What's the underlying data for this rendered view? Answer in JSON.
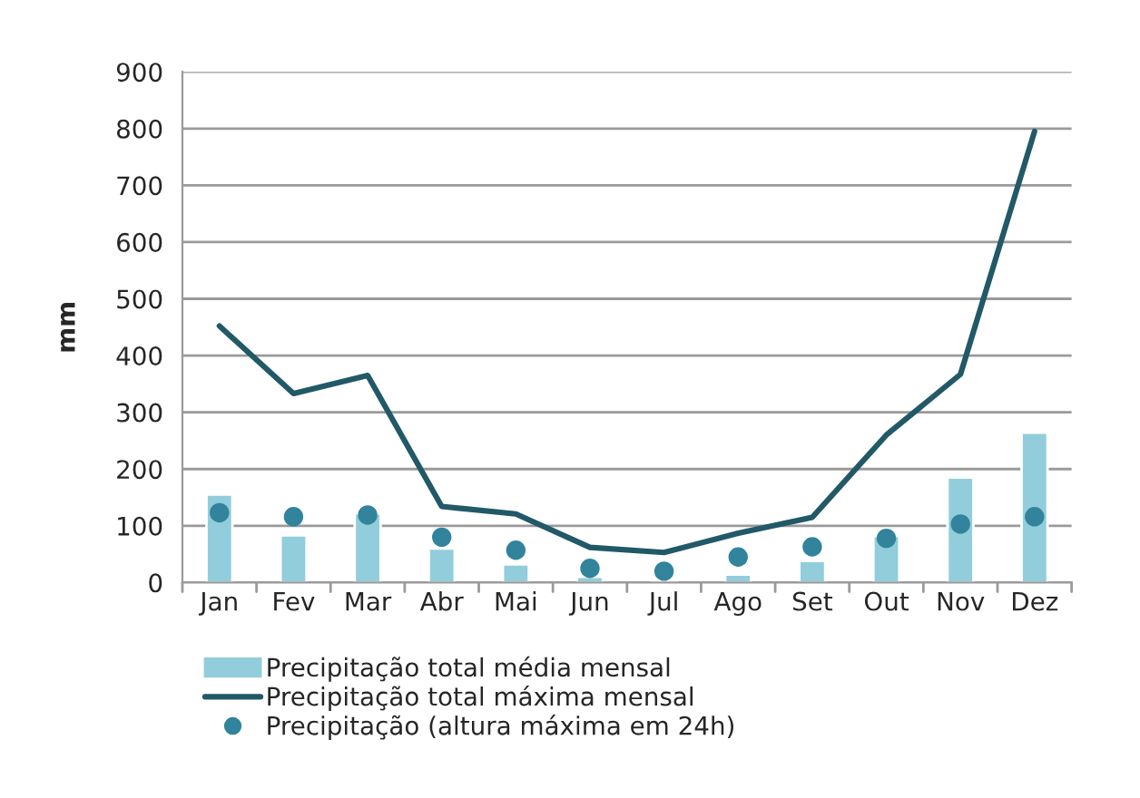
{
  "chart_data": {
    "type": "bar",
    "ylabel": "mm",
    "categories": [
      "Jan",
      "Fev",
      "Mar",
      "Abr",
      "Mai",
      "Jun",
      "Jul",
      "Ago",
      "Set",
      "Out",
      "Nov",
      "Dez"
    ],
    "series": [
      {
        "name": "Precipitação total média mensal",
        "color": "#92cddc",
        "values": [
          155,
          83,
          122,
          60,
          32,
          10,
          3,
          14,
          38,
          82,
          185,
          264
        ]
      },
      {
        "name": "Precipitação total máxima mensal",
        "type": "line",
        "color": "#215967",
        "values": [
          452,
          333,
          365,
          134,
          121,
          62,
          53,
          87,
          115,
          260,
          367,
          795
        ]
      },
      {
        "name": "Precipitação (altura máxima em 24h)",
        "type": "scatter",
        "color": "#31849b",
        "marker": "circle",
        "values": [
          123,
          116,
          119,
          80,
          57,
          25,
          20,
          45,
          63,
          78,
          103,
          116
        ]
      }
    ],
    "ylim": [
      0,
      900
    ],
    "yticks": [
      0,
      100,
      200,
      300,
      400,
      500,
      600,
      700,
      800,
      900
    ],
    "grid": "y",
    "legend": "bottom"
  }
}
